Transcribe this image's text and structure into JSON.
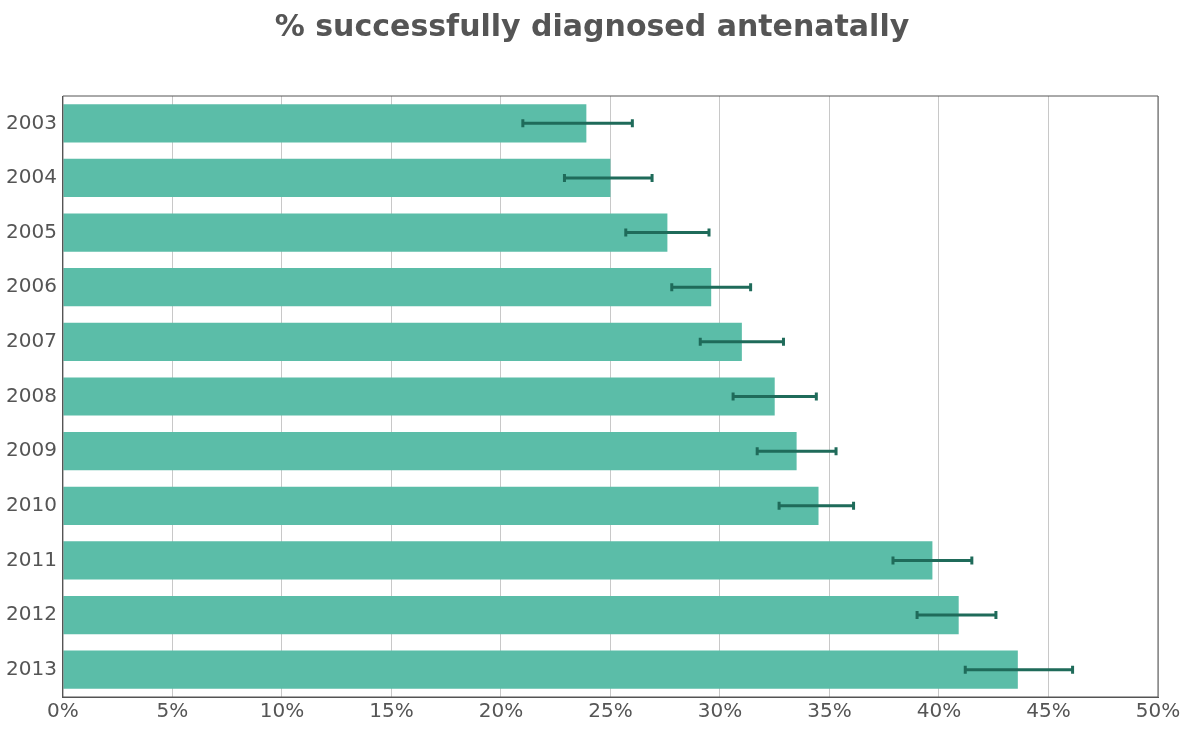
{
  "chart_data": {
    "type": "bar",
    "orientation": "horizontal",
    "title": "% successfully diagnosed antenatally",
    "categories": [
      "2003",
      "2004",
      "2005",
      "2006",
      "2007",
      "2008",
      "2009",
      "2010",
      "2011",
      "2012",
      "2013"
    ],
    "values": [
      23.9,
      25.0,
      27.6,
      29.6,
      31.0,
      32.5,
      33.5,
      34.5,
      39.7,
      40.9,
      43.6
    ],
    "errors": [
      [
        21.0,
        26.0
      ],
      [
        22.9,
        26.9
      ],
      [
        25.7,
        29.5
      ],
      [
        27.8,
        31.4
      ],
      [
        29.1,
        32.9
      ],
      [
        30.6,
        34.4
      ],
      [
        31.7,
        35.3
      ],
      [
        32.7,
        36.1
      ],
      [
        37.9,
        41.5
      ],
      [
        39.0,
        42.6
      ],
      [
        41.2,
        46.1
      ]
    ],
    "color": "#5bbda8",
    "xlim": [
      0,
      50
    ],
    "xticks": [
      {
        "value": 0,
        "label": "0%"
      },
      {
        "value": 5,
        "label": "5%"
      },
      {
        "value": 10,
        "label": "10%"
      },
      {
        "value": 15,
        "label": "15%"
      },
      {
        "value": 20,
        "label": "20%"
      },
      {
        "value": 25,
        "label": "25%"
      },
      {
        "value": 30,
        "label": "30%"
      },
      {
        "value": 35,
        "label": "35%"
      },
      {
        "value": 40,
        "label": "40%"
      },
      {
        "value": 45,
        "label": "45%"
      },
      {
        "value": 50,
        "label": "50%"
      }
    ],
    "grid": "x",
    "legend": false
  }
}
